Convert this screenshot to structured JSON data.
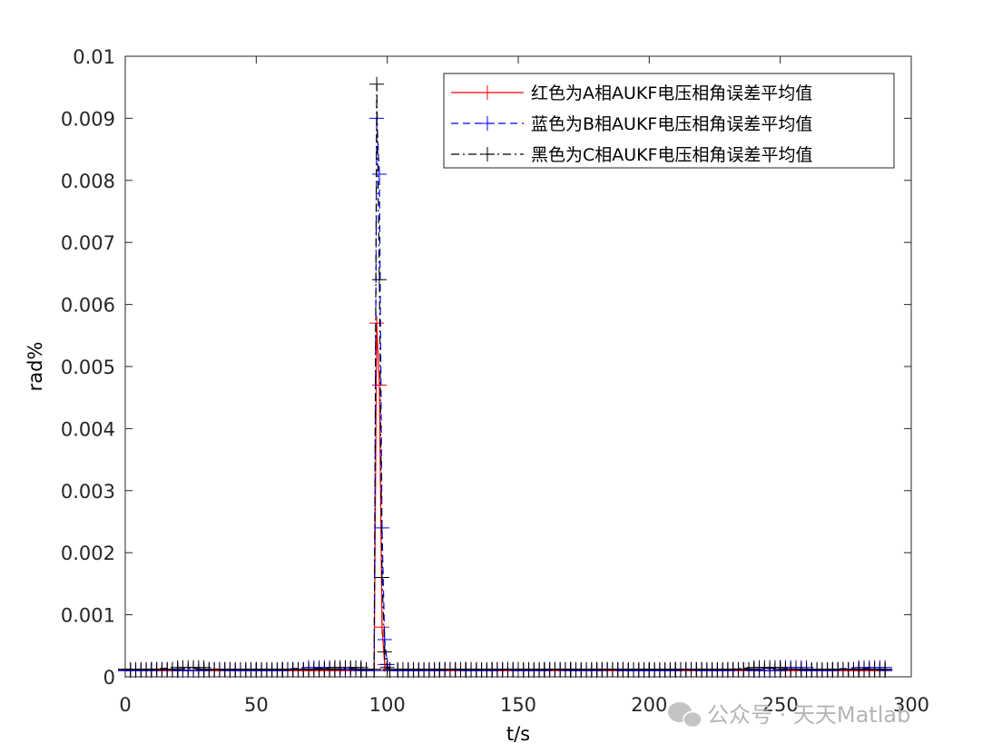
{
  "chart_data": {
    "type": "line",
    "title": "",
    "xlabel": "t/s",
    "ylabel": "rad%",
    "xlim": [
      0,
      300
    ],
    "ylim": [
      0,
      0.01
    ],
    "xticks": [
      0,
      50,
      100,
      150,
      200,
      250,
      300
    ],
    "xtick_labels": [
      "0",
      "50",
      "100",
      "150",
      "200",
      "250",
      "300"
    ],
    "yticks": [
      0,
      0.001,
      0.002,
      0.003,
      0.004,
      0.005,
      0.006,
      0.007,
      0.008,
      0.009,
      0.01
    ],
    "ytick_labels": [
      "0",
      "0.001",
      "0.002",
      "0.003",
      "0.004",
      "0.005",
      "0.006",
      "0.007",
      "0.008",
      "0.009",
      "0.01"
    ],
    "grid": false,
    "legend_position": "top-right",
    "marker": "+",
    "series": [
      {
        "name": "红色为A相AUKF电压相角误差平均值",
        "color": "#ff0000",
        "line_style": "solid",
        "x": [
          0,
          10,
          20,
          30,
          40,
          50,
          60,
          70,
          80,
          90,
          95,
          96,
          97,
          98,
          99,
          100,
          101,
          110,
          120,
          130,
          140,
          150,
          160,
          170,
          180,
          190,
          200,
          210,
          220,
          230,
          240,
          250,
          260,
          270,
          280,
          290
        ],
        "values": [
          0.0001,
          0.0001,
          0.0001,
          0.0001,
          0.0001,
          0.0001,
          0.0001,
          0.0001,
          0.0001,
          0.0001,
          0.0001,
          0.0057,
          0.0047,
          0.0008,
          0.0002,
          0.0001,
          0.0001,
          0.0001,
          0.0001,
          0.0001,
          0.0001,
          0.0001,
          0.0001,
          0.0001,
          0.0001,
          0.0001,
          0.0001,
          0.0001,
          0.0001,
          0.0001,
          0.0001,
          0.0001,
          0.0001,
          0.0001,
          0.0001,
          0.0001
        ]
      },
      {
        "name": "蓝色为B相AUKF电压相角误差平均值",
        "color": "#0000ff",
        "line_style": "dashed",
        "x": [
          0,
          10,
          20,
          30,
          40,
          50,
          60,
          70,
          80,
          90,
          95,
          96,
          97,
          98,
          99,
          100,
          101,
          110,
          120,
          130,
          140,
          150,
          160,
          170,
          180,
          190,
          200,
          210,
          220,
          230,
          240,
          250,
          260,
          270,
          280,
          290
        ],
        "values": [
          0.0001,
          0.00012,
          0.0001,
          0.00012,
          0.0001,
          0.0001,
          0.00012,
          0.00015,
          0.00012,
          0.0001,
          0.0001,
          0.009,
          0.0081,
          0.0024,
          0.0006,
          0.0002,
          0.0001,
          0.0001,
          0.00012,
          0.0001,
          0.00012,
          0.0001,
          0.00012,
          0.0001,
          0.00012,
          0.0001,
          0.0001,
          0.00012,
          0.0001,
          0.00012,
          0.0001,
          0.00015,
          0.0001,
          0.00012,
          0.00015,
          0.0001
        ]
      },
      {
        "name": "黑色为C相AUKF电压相角误差平均值",
        "color": "#000000",
        "line_style": "dashdot",
        "x": [
          0,
          10,
          20,
          30,
          40,
          50,
          60,
          70,
          80,
          90,
          95,
          96,
          97,
          98,
          99,
          100,
          101,
          110,
          120,
          130,
          140,
          150,
          160,
          170,
          180,
          190,
          200,
          210,
          220,
          230,
          240,
          250,
          260,
          270,
          280,
          290
        ],
        "values": [
          0.00012,
          0.00012,
          0.00015,
          0.00012,
          0.00012,
          0.00012,
          0.00012,
          0.00012,
          0.00015,
          0.00012,
          0.00012,
          0.00955,
          0.0064,
          0.0016,
          0.0004,
          0.00015,
          0.00012,
          0.00012,
          0.00012,
          0.00012,
          0.00012,
          0.00012,
          0.00012,
          0.00012,
          0.00012,
          0.00012,
          0.00012,
          0.00012,
          0.00012,
          0.00012,
          0.00015,
          0.00012,
          0.00012,
          0.00012,
          0.00012,
          0.00012
        ]
      }
    ]
  },
  "watermark": {
    "text": "公众号 · 天天Matlab",
    "icon": "wechat-icon"
  }
}
